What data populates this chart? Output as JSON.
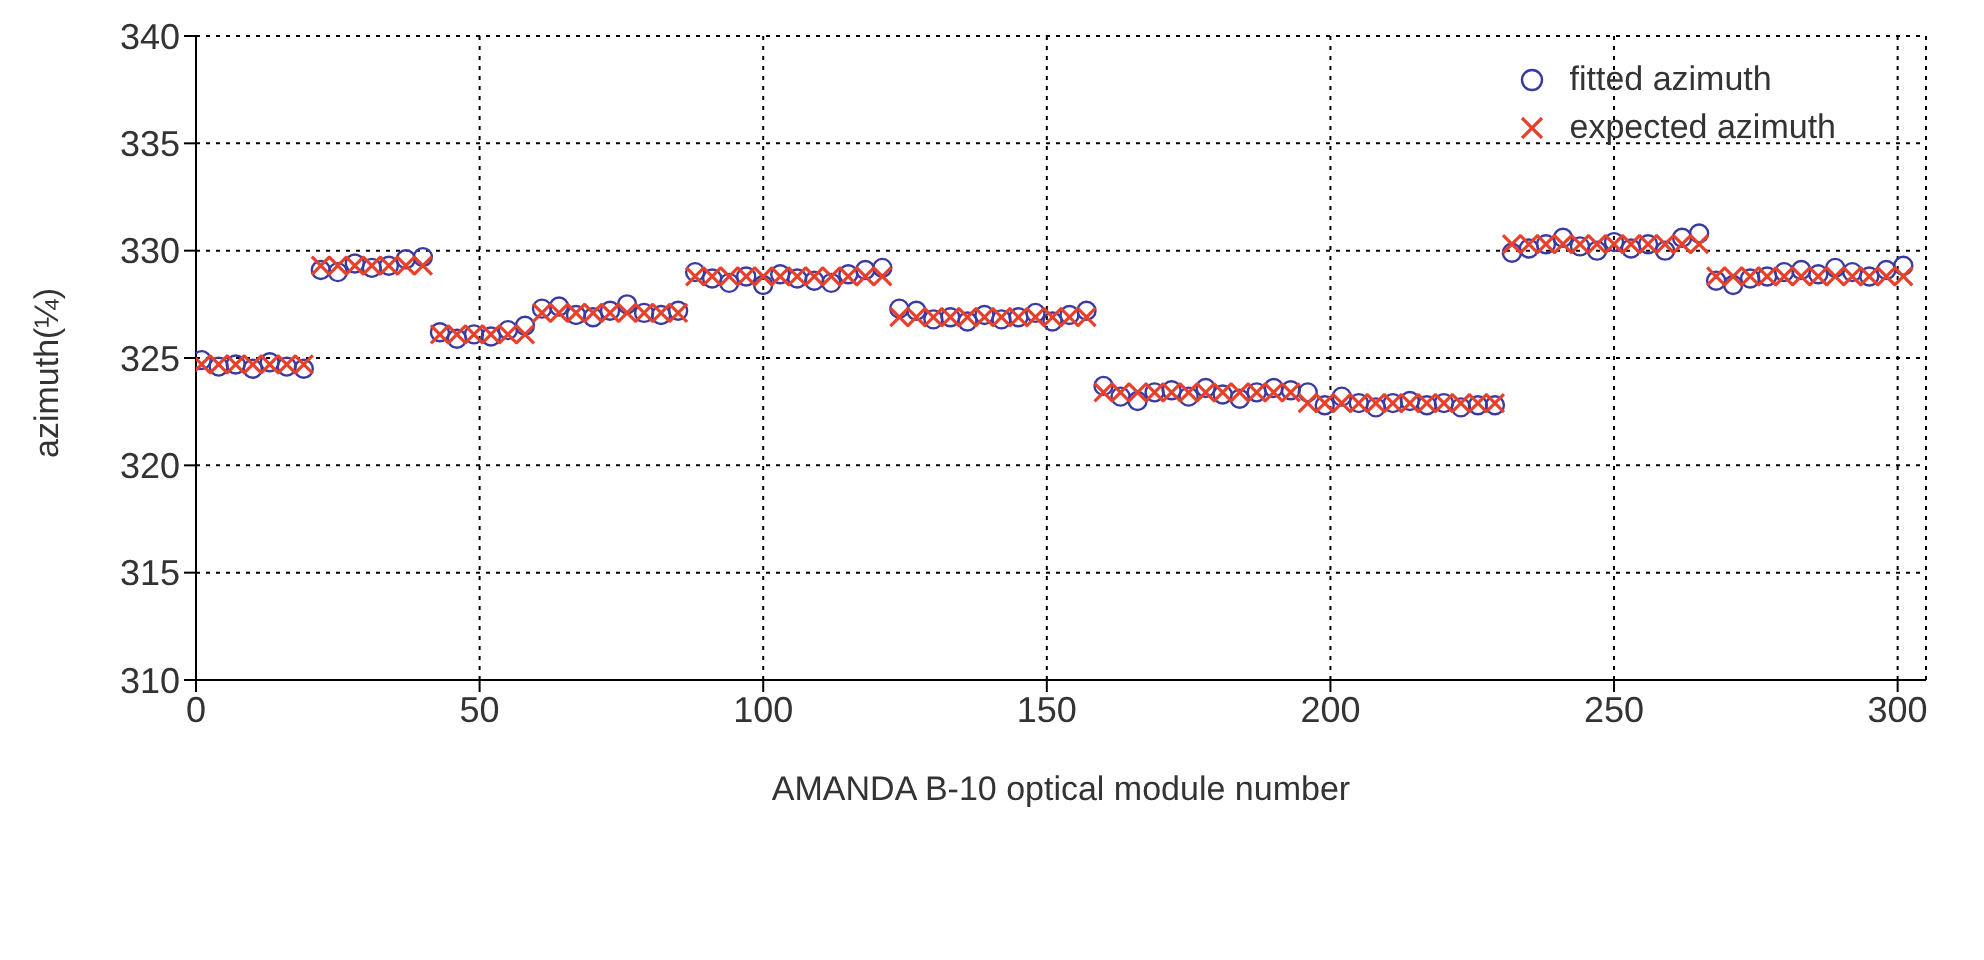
{
  "chart_data": {
    "type": "scatter",
    "xlabel": "AMANDA  B-10 optical module number",
    "ylabel": "azimuth(¼)",
    "x": [
      1,
      4,
      7,
      10,
      13,
      16,
      19,
      22,
      25,
      28,
      31,
      34,
      37,
      40,
      43,
      46,
      49,
      52,
      55,
      58,
      61,
      64,
      67,
      70,
      73,
      76,
      79,
      82,
      85,
      88,
      91,
      94,
      97,
      100,
      103,
      106,
      109,
      112,
      115,
      118,
      121,
      124,
      127,
      130,
      133,
      136,
      139,
      142,
      145,
      148,
      151,
      154,
      157,
      160,
      163,
      166,
      169,
      172,
      175,
      178,
      181,
      184,
      187,
      190,
      193,
      196,
      199,
      202,
      205,
      208,
      211,
      214,
      217,
      220,
      223,
      226,
      229,
      232,
      235,
      238,
      241,
      244,
      247,
      250,
      253,
      256,
      259,
      262,
      265,
      268,
      271,
      274,
      277,
      280,
      283,
      286,
      289,
      292,
      295,
      298,
      301
    ],
    "series": [
      {
        "name": "fitted azimuth",
        "color": "#3a3aa0",
        "marker": "circle",
        "values": [
          324.9,
          324.6,
          324.7,
          324.5,
          324.8,
          324.6,
          324.5,
          329.1,
          329.0,
          329.4,
          329.2,
          329.3,
          329.6,
          329.7,
          326.2,
          325.9,
          326.1,
          326.0,
          326.3,
          326.5,
          327.3,
          327.4,
          327.0,
          326.9,
          327.2,
          327.5,
          327.1,
          327.0,
          327.2,
          329.0,
          328.7,
          328.5,
          328.8,
          328.4,
          328.9,
          328.7,
          328.6,
          328.5,
          328.9,
          329.1,
          329.2,
          327.3,
          327.2,
          326.8,
          326.9,
          326.7,
          327.0,
          326.8,
          326.9,
          327.1,
          326.7,
          327.0,
          327.2,
          323.7,
          323.2,
          323.0,
          323.4,
          323.5,
          323.2,
          323.6,
          323.3,
          323.1,
          323.4,
          323.6,
          323.5,
          323.4,
          322.8,
          323.2,
          322.9,
          322.7,
          322.9,
          323.0,
          322.8,
          322.9,
          322.7,
          322.8,
          322.8,
          329.9,
          330.1,
          330.3,
          330.6,
          330.2,
          330.0,
          330.4,
          330.1,
          330.3,
          330.0,
          330.6,
          330.8,
          328.6,
          328.4,
          328.7,
          328.8,
          329.0,
          329.1,
          328.9,
          329.2,
          329.0,
          328.8,
          329.1,
          329.3
        ]
      },
      {
        "name": "expected azimuth",
        "color": "#e8402a",
        "marker": "cross",
        "values": [
          324.7,
          324.7,
          324.7,
          324.7,
          324.7,
          324.7,
          324.7,
          329.3,
          329.3,
          329.3,
          329.3,
          329.3,
          329.3,
          329.3,
          326.1,
          326.1,
          326.1,
          326.1,
          326.1,
          326.1,
          327.1,
          327.1,
          327.1,
          327.1,
          327.1,
          327.1,
          327.1,
          327.1,
          327.1,
          328.8,
          328.8,
          328.8,
          328.8,
          328.8,
          328.8,
          328.8,
          328.8,
          328.8,
          328.8,
          328.8,
          328.8,
          326.9,
          326.9,
          326.9,
          326.9,
          326.9,
          326.9,
          326.9,
          326.9,
          326.9,
          326.9,
          326.9,
          326.9,
          323.4,
          323.4,
          323.4,
          323.4,
          323.4,
          323.4,
          323.4,
          323.4,
          323.4,
          323.4,
          323.4,
          323.4,
          322.9,
          322.9,
          322.9,
          322.9,
          322.9,
          322.9,
          322.9,
          322.9,
          322.9,
          322.9,
          322.9,
          322.9,
          330.3,
          330.3,
          330.3,
          330.3,
          330.3,
          330.3,
          330.3,
          330.3,
          330.3,
          330.3,
          330.3,
          330.3,
          328.8,
          328.8,
          328.8,
          328.8,
          328.8,
          328.8,
          328.8,
          328.8,
          328.8,
          328.8,
          328.8,
          328.8
        ]
      }
    ],
    "xlim": [
      0,
      305
    ],
    "xticks": [
      0,
      50,
      100,
      150,
      200,
      250,
      300
    ],
    "ylim": [
      310,
      340
    ],
    "yticks": [
      310,
      315,
      320,
      325,
      330,
      335,
      340
    ],
    "grid": true,
    "legend": "top right",
    "line_style": "dotted"
  }
}
